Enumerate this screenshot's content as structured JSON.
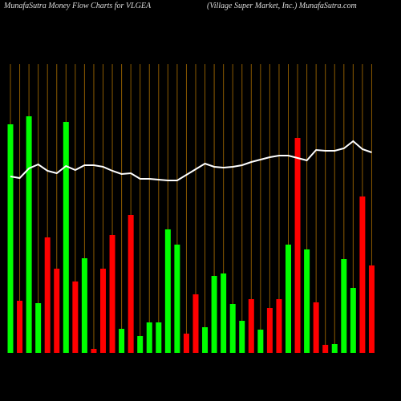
{
  "chart_data": {
    "type": "bar",
    "title": "MunafaSutra  Money Flow  Charts for VLGEA",
    "subtitle": "(Village   Super Market,  Inc.) MunafaSutra.com",
    "values": [
      285,
      65,
      295,
      62,
      144,
      105,
      288,
      89,
      118,
      5,
      105,
      147,
      30,
      172,
      21,
      38,
      38,
      154,
      135,
      24,
      73,
      32,
      96,
      99,
      61,
      40,
      67,
      29,
      56,
      67,
      135,
      268,
      129,
      63,
      10,
      11,
      117,
      81,
      195,
      109
    ],
    "colors": [
      "#00ff00",
      "#ff0000",
      "#00ff00",
      "#00ff00",
      "#ff0000",
      "#ff0000",
      "#00ff00",
      "#ff0000",
      "#00ff00",
      "#ff0000",
      "#ff0000",
      "#ff0000",
      "#00ff00",
      "#ff0000",
      "#00ff00",
      "#00ff00",
      "#00ff00",
      "#00ff00",
      "#00ff00",
      "#ff0000",
      "#ff0000",
      "#00ff00",
      "#00ff00",
      "#00ff00",
      "#00ff00",
      "#00ff00",
      "#ff0000",
      "#00ff00",
      "#ff0000",
      "#ff0000",
      "#00ff00",
      "#ff0000",
      "#00ff00",
      "#ff0000",
      "#ff0000",
      "#00ff00",
      "#00ff00",
      "#00ff00",
      "#ff0000",
      "#ff0000"
    ],
    "line_values": [
      220,
      218,
      230,
      235,
      227,
      224,
      233,
      228,
      234,
      234,
      232,
      227,
      223,
      224,
      217,
      217,
      216,
      215,
      215,
      222,
      229,
      236,
      232,
      231,
      232,
      234,
      238,
      241,
      244,
      246,
      246,
      243,
      240,
      253,
      252,
      252,
      255,
      264,
      254,
      250
    ],
    "line_color": "#ffffff",
    "grid_color": "#8b5a00",
    "ylim": [
      0,
      360
    ]
  }
}
